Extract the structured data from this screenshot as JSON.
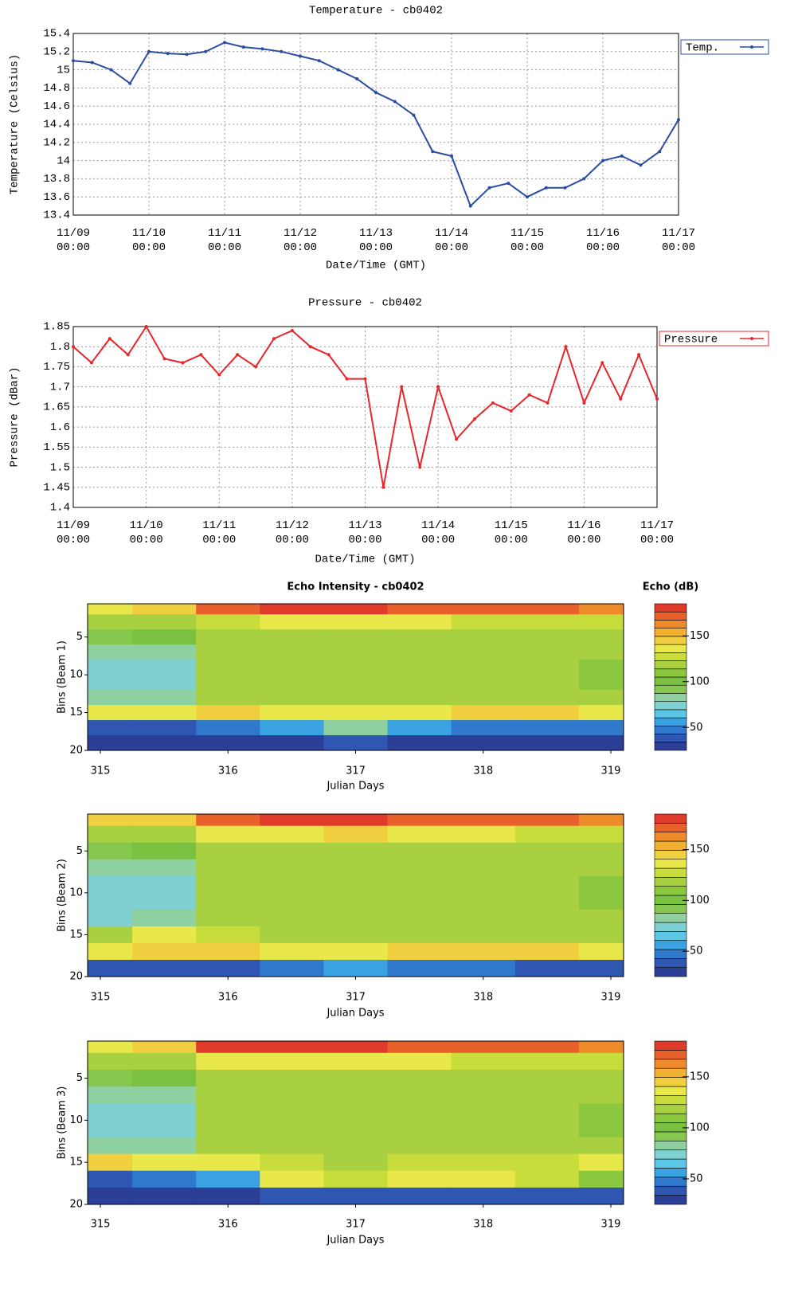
{
  "chart_data": [
    {
      "type": "line",
      "title": "Temperature -  cb0402",
      "xlabel": "Date/Time (GMT)",
      "ylabel": "Temperature (Celsius)",
      "x": [
        "11/09 00:00",
        "11/09 06:00",
        "11/09 12:00",
        "11/09 18:00",
        "11/10 00:00",
        "11/10 06:00",
        "11/10 12:00",
        "11/10 18:00",
        "11/11 00:00",
        "11/11 06:00",
        "11/11 12:00",
        "11/11 18:00",
        "11/12 00:00",
        "11/12 06:00",
        "11/12 12:00",
        "11/12 18:00",
        "11/13 00:00",
        "11/13 06:00",
        "11/13 12:00",
        "11/13 18:00",
        "11/14 00:00",
        "11/14 06:00",
        "11/14 12:00",
        "11/14 18:00",
        "11/15 00:00",
        "11/15 06:00",
        "11/15 12:00",
        "11/15 18:00",
        "11/16 00:00",
        "11/16 06:00",
        "11/16 12:00",
        "11/16 18:00",
        "11/17 00:00"
      ],
      "series": [
        {
          "name": "Temp.",
          "color": "#2a4ca3",
          "values": [
            15.1,
            15.08,
            15.0,
            14.85,
            15.2,
            15.18,
            15.17,
            15.2,
            15.3,
            15.25,
            15.23,
            15.2,
            15.15,
            15.1,
            15.0,
            14.9,
            14.75,
            14.65,
            14.5,
            14.1,
            14.05,
            13.5,
            13.7,
            13.75,
            13.6,
            13.7,
            13.7,
            13.8,
            14.0,
            14.05,
            13.95,
            14.1,
            14.45
          ]
        }
      ],
      "xlim": [
        "11/09\n00:00",
        "11/17\n00:00"
      ],
      "xticks": [
        "11/09\n00:00",
        "11/10\n00:00",
        "11/11\n00:00",
        "11/12\n00:00",
        "11/13\n00:00",
        "11/14\n00:00",
        "11/15\n00:00",
        "11/16\n00:00",
        "11/17\n00:00"
      ],
      "ylim": [
        13.4,
        15.4
      ],
      "yticks": [
        13.4,
        13.6,
        13.8,
        14,
        14.2,
        14.4,
        14.6,
        14.8,
        15,
        15.2,
        15.4
      ],
      "grid": true,
      "legend": "outside-right"
    },
    {
      "type": "line",
      "title": "Pressure -  cb0402",
      "xlabel": "Date/Time (GMT)",
      "ylabel": "Pressure (dBar)",
      "x": [
        "11/09 00:00",
        "11/09 06:00",
        "11/09 12:00",
        "11/09 18:00",
        "11/10 00:00",
        "11/10 06:00",
        "11/10 12:00",
        "11/10 18:00",
        "11/11 00:00",
        "11/11 06:00",
        "11/11 12:00",
        "11/11 18:00",
        "11/12 00:00",
        "11/12 06:00",
        "11/12 12:00",
        "11/12 18:00",
        "11/13 00:00",
        "11/13 06:00",
        "11/13 12:00",
        "11/13 18:00",
        "11/14 00:00",
        "11/14 06:00",
        "11/14 12:00",
        "11/14 18:00",
        "11/15 00:00",
        "11/15 06:00",
        "11/15 12:00",
        "11/15 18:00",
        "11/16 00:00",
        "11/16 06:00",
        "11/16 12:00",
        "11/16 18:00",
        "11/17 00:00"
      ],
      "series": [
        {
          "name": "Pressure",
          "color": "#e8262b",
          "values": [
            1.8,
            1.76,
            1.82,
            1.78,
            1.85,
            1.77,
            1.76,
            1.78,
            1.73,
            1.78,
            1.75,
            1.82,
            1.84,
            1.8,
            1.78,
            1.72,
            1.72,
            1.45,
            1.7,
            1.5,
            1.7,
            1.57,
            1.62,
            1.66,
            1.64,
            1.68,
            1.66,
            1.8,
            1.66,
            1.76,
            1.67,
            1.78,
            1.67
          ]
        }
      ],
      "xlim": [
        "11/09\n00:00",
        "11/17\n00:00"
      ],
      "xticks": [
        "11/09\n00:00",
        "11/10\n00:00",
        "11/11\n00:00",
        "11/12\n00:00",
        "11/13\n00:00",
        "11/14\n00:00",
        "11/15\n00:00",
        "11/16\n00:00",
        "11/17\n00:00"
      ],
      "ylim": [
        1.4,
        1.85
      ],
      "yticks": [
        1.4,
        1.45,
        1.5,
        1.55,
        1.6,
        1.65,
        1.7,
        1.75,
        1.8,
        1.85
      ],
      "grid": true,
      "legend": "outside-right"
    },
    {
      "type": "heatmap",
      "title": "Echo Intensity - cb0402",
      "colorbar_title": "Echo (dB)",
      "xlabel": "Julian Days",
      "ylabel": "Bins (Beam 1)",
      "x": [
        315,
        315.5,
        316,
        316.5,
        317,
        317.5,
        318,
        318.5,
        319
      ],
      "y": [
        1,
        3,
        5,
        7,
        9,
        11,
        13,
        15,
        17,
        19
      ],
      "z": [
        [
          140,
          145,
          175,
          178,
          180,
          172,
          170,
          168,
          165
        ],
        [
          115,
          118,
          130,
          135,
          140,
          132,
          130,
          128,
          128
        ],
        [
          95,
          100,
          118,
          120,
          122,
          120,
          120,
          118,
          118
        ],
        [
          80,
          85,
          115,
          118,
          118,
          118,
          118,
          116,
          115
        ],
        [
          75,
          78,
          115,
          115,
          116,
          116,
          116,
          115,
          112
        ],
        [
          75,
          75,
          115,
          115,
          115,
          115,
          115,
          115,
          110
        ],
        [
          80,
          80,
          118,
          118,
          118,
          118,
          118,
          118,
          115
        ],
        [
          140,
          140,
          145,
          140,
          140,
          140,
          142,
          142,
          140
        ],
        [
          40,
          40,
          45,
          60,
          80,
          55,
          50,
          50,
          50
        ],
        [
          30,
          30,
          30,
          30,
          35,
          30,
          30,
          30,
          30
        ]
      ],
      "xlim": [
        314.9,
        319.1
      ],
      "xticks": [
        315,
        316,
        317,
        318,
        319
      ],
      "ylim": [
        20,
        0.6
      ],
      "yticks": [
        5,
        10,
        15,
        20
      ],
      "clim": [
        25,
        185
      ],
      "cticks": [
        50,
        100,
        150
      ],
      "colorscale": [
        "#2b3f96",
        "#2f56b0",
        "#2f78cc",
        "#3aa2e0",
        "#5bc6e6",
        "#7fd0d0",
        "#8fd0a0",
        "#86c84f",
        "#7ac142",
        "#8cc83e",
        "#a8d040",
        "#c8dc3c",
        "#e8e84a",
        "#f0d040",
        "#f2b030",
        "#ee8a2a",
        "#e8602a",
        "#e03a2a"
      ]
    },
    {
      "type": "heatmap",
      "xlabel": "Julian Days",
      "ylabel": "Bins (Beam 2)",
      "x": [
        315,
        315.5,
        316,
        316.5,
        317,
        317.5,
        318,
        318.5,
        319
      ],
      "y": [
        1,
        3,
        5,
        7,
        9,
        11,
        13,
        15,
        17,
        19
      ],
      "z": [
        [
          142,
          148,
          176,
          178,
          182,
          174,
          172,
          168,
          166
        ],
        [
          116,
          120,
          132,
          136,
          142,
          134,
          132,
          130,
          128
        ],
        [
          96,
          100,
          120,
          121,
          122,
          120,
          120,
          118,
          118
        ],
        [
          82,
          86,
          116,
          118,
          118,
          118,
          118,
          116,
          115
        ],
        [
          76,
          78,
          115,
          115,
          116,
          116,
          116,
          115,
          113
        ],
        [
          74,
          75,
          115,
          115,
          115,
          115,
          115,
          115,
          112
        ],
        [
          78,
          80,
          117,
          118,
          118,
          118,
          118,
          118,
          116
        ],
        [
          120,
          135,
          130,
          120,
          118,
          118,
          118,
          118,
          118
        ],
        [
          140,
          145,
          145,
          140,
          140,
          142,
          142,
          142,
          140
        ],
        [
          35,
          35,
          40,
          45,
          55,
          45,
          45,
          40,
          40
        ]
      ],
      "xlim": [
        314.9,
        319.1
      ],
      "xticks": [
        315,
        316,
        317,
        318,
        319
      ],
      "ylim": [
        20,
        0.6
      ],
      "yticks": [
        5,
        10,
        15,
        20
      ],
      "clim": [
        25,
        185
      ],
      "cticks": [
        50,
        100,
        150
      ],
      "colorscale": [
        "#2b3f96",
        "#2f56b0",
        "#2f78cc",
        "#3aa2e0",
        "#5bc6e6",
        "#7fd0d0",
        "#8fd0a0",
        "#86c84f",
        "#7ac142",
        "#8cc83e",
        "#a8d040",
        "#c8dc3c",
        "#e8e84a",
        "#f0d040",
        "#f2b030",
        "#ee8a2a",
        "#e8602a",
        "#e03a2a"
      ]
    },
    {
      "type": "heatmap",
      "xlabel": "Julian Days",
      "ylabel": "Bins (Beam 3)",
      "x": [
        315,
        315.5,
        316,
        316.5,
        317,
        317.5,
        318,
        318.5,
        319
      ],
      "y": [
        1,
        3,
        5,
        7,
        9,
        11,
        13,
        15,
        17,
        19
      ],
      "z": [
        [
          138,
          142,
          178,
          180,
          182,
          175,
          170,
          168,
          166
        ],
        [
          114,
          116,
          132,
          136,
          140,
          134,
          130,
          128,
          128
        ],
        [
          94,
          98,
          120,
          121,
          122,
          120,
          120,
          118,
          118
        ],
        [
          80,
          84,
          116,
          118,
          118,
          118,
          118,
          116,
          115
        ],
        [
          76,
          78,
          115,
          115,
          116,
          116,
          116,
          115,
          112
        ],
        [
          75,
          76,
          115,
          115,
          115,
          115,
          115,
          115,
          112
        ],
        [
          82,
          84,
          118,
          118,
          118,
          118,
          118,
          118,
          118
        ],
        [
          145,
          140,
          135,
          125,
          120,
          125,
          125,
          130,
          140
        ],
        [
          40,
          45,
          60,
          140,
          130,
          140,
          140,
          130,
          110
        ],
        [
          30,
          30,
          32,
          35,
          40,
          35,
          35,
          35,
          35
        ]
      ],
      "xlim": [
        314.9,
        319.1
      ],
      "xticks": [
        315,
        316,
        317,
        318,
        319
      ],
      "ylim": [
        20,
        0.6
      ],
      "yticks": [
        5,
        10,
        15,
        20
      ],
      "clim": [
        25,
        185
      ],
      "cticks": [
        50,
        100,
        150
      ],
      "colorscale": [
        "#2b3f96",
        "#2f56b0",
        "#2f78cc",
        "#3aa2e0",
        "#5bc6e6",
        "#7fd0d0",
        "#8fd0a0",
        "#86c84f",
        "#7ac142",
        "#8cc83e",
        "#a8d040",
        "#c8dc3c",
        "#e8e84a",
        "#f0d040",
        "#f2b030",
        "#ee8a2a",
        "#e8602a",
        "#e03a2a"
      ]
    }
  ]
}
